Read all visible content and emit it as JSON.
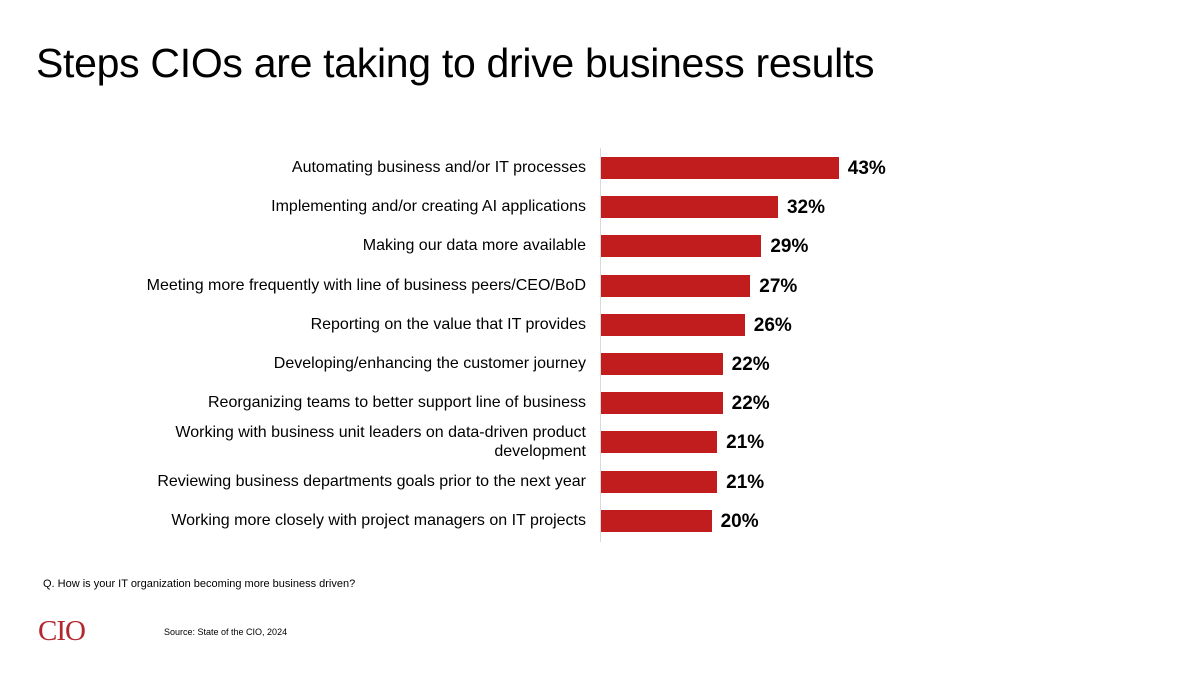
{
  "title": "Steps CIOs are taking to drive business results",
  "question": "Q. How is your IT organization becoming more business driven?",
  "source": "Source: State of the CIO, 2024",
  "logo": "CIO",
  "colors": {
    "bar": "#c11d1f",
    "logo": "#b3282d",
    "axis": "#d9d9d9"
  },
  "bars": [
    {
      "label": "Automating business and/or IT processes",
      "value": 43,
      "display": "43%"
    },
    {
      "label": "Implementing and/or creating AI applications",
      "value": 32,
      "display": "32%"
    },
    {
      "label": "Making our data more available",
      "value": 29,
      "display": "29%"
    },
    {
      "label": "Meeting more frequently with line of business peers/CEO/BoD",
      "value": 27,
      "display": "27%"
    },
    {
      "label": "Reporting on the value that IT provides",
      "value": 26,
      "display": "26%"
    },
    {
      "label": "Developing/enhancing the customer journey",
      "value": 22,
      "display": "22%"
    },
    {
      "label": "Reorganizing teams to better support line of business",
      "value": 22,
      "display": "22%"
    },
    {
      "label": "Working with business unit leaders on data-driven product development",
      "value": 21,
      "display": "21%"
    },
    {
      "label": "Reviewing business departments goals prior to the next year",
      "value": 21,
      "display": "21%"
    },
    {
      "label": "Working more closely with project managers on IT projects",
      "value": 20,
      "display": "20%"
    }
  ],
  "chart_data": {
    "type": "bar",
    "orientation": "horizontal",
    "title": "Steps CIOs are taking to drive business results",
    "categories": [
      "Automating business and/or IT processes",
      "Implementing and/or creating AI applications",
      "Making our data more available",
      "Meeting more frequently with line of business peers/CEO/BoD",
      "Reporting on the value that IT provides",
      "Developing/enhancing the customer journey",
      "Reorganizing teams to better support line of business",
      "Working with business unit leaders on data-driven product development",
      "Reviewing business departments goals prior to the next year",
      "Working more closely with project managers on IT projects"
    ],
    "values": [
      43,
      32,
      29,
      27,
      26,
      22,
      22,
      21,
      21,
      20
    ],
    "unit": "%",
    "xlabel": "",
    "ylabel": "",
    "grid": false,
    "legend": "none",
    "data_labels": true,
    "subtitle_note": "Q. How is your IT organization becoming more business driven?",
    "source": "Source: State of the CIO, 2024"
  }
}
